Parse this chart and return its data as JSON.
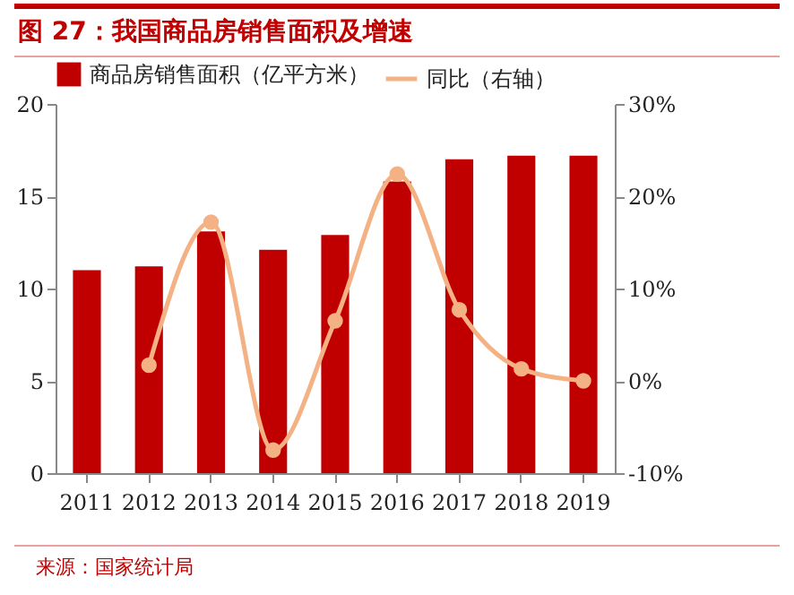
{
  "chart_data": {
    "type": "bar",
    "title": "图 27：我国商品房销售面积及增速",
    "categories": [
      "2011",
      "2012",
      "2013",
      "2014",
      "2015",
      "2016",
      "2017",
      "2018",
      "2019"
    ],
    "series": [
      {
        "name": "商品房销售面积（亿平方米）",
        "color": "#c00000",
        "values": [
          11.0,
          11.2,
          13.1,
          12.1,
          12.9,
          15.8,
          17.0,
          17.2,
          17.2
        ]
      },
      {
        "name": "同比（右轴）",
        "type": "line",
        "axis": "y2",
        "color": "#f4b183",
        "values": [
          null,
          1.7,
          17.2,
          -7.5,
          6.5,
          22.4,
          7.7,
          1.3,
          0
        ]
      }
    ],
    "ylim": [
      0,
      20
    ],
    "yticks": [
      0,
      5,
      10,
      15,
      20
    ],
    "y2lim": [
      -10,
      30
    ],
    "y2ticks": [
      {
        "value": -10,
        "label": "-10%"
      },
      {
        "value": 0,
        "label": "0%"
      },
      {
        "value": 10,
        "label": "10%"
      },
      {
        "value": 20,
        "label": "20%"
      },
      {
        "value": 30,
        "label": "30%"
      }
    ],
    "grid": false,
    "legend": "top",
    "marker": "circle",
    "annotations": [
      "来源：国家统计局"
    ]
  }
}
